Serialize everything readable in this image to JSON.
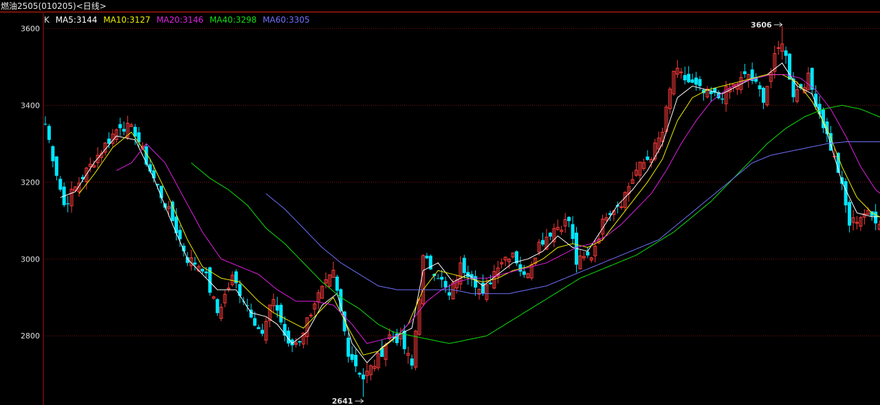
{
  "window": {
    "title": "燃油2505(010205)<日线>"
  },
  "legend": [
    {
      "label": "K",
      "color": "#e0e0e0"
    },
    {
      "label": "MA5:3144",
      "color": "#ffffff"
    },
    {
      "label": "MA10:3127",
      "color": "#f0f000"
    },
    {
      "label": "MA20:3146",
      "color": "#e020e0"
    },
    {
      "label": "MA40:3298",
      "color": "#10e010"
    },
    {
      "label": "MA60:3305",
      "color": "#7070ff"
    }
  ],
  "colors": {
    "up": "#ff3b3b",
    "down": "#00e6ff",
    "grid": "#8b1010",
    "axis": "#b01414",
    "text": "#e0e0e0"
  },
  "chart_data": {
    "type": "candlestick",
    "ylim": [
      2620,
      3640
    ],
    "yticks": [
      2800,
      3000,
      3200,
      3400,
      3600
    ],
    "annotations": [
      {
        "text": "3606",
        "value": 3606,
        "index": 197
      },
      {
        "text": "2641",
        "value": 2641,
        "index": 85
      }
    ],
    "anchors": [
      [
        0,
        3350
      ],
      [
        5,
        3140
      ],
      [
        9,
        3200
      ],
      [
        14,
        3270
      ],
      [
        20,
        3350
      ],
      [
        24,
        3330
      ],
      [
        28,
        3230
      ],
      [
        34,
        3100
      ],
      [
        38,
        3000
      ],
      [
        42,
        2980
      ],
      [
        46,
        2860
      ],
      [
        50,
        2950
      ],
      [
        54,
        2880
      ],
      [
        58,
        2800
      ],
      [
        61,
        2900
      ],
      [
        65,
        2770
      ],
      [
        68,
        2790
      ],
      [
        72,
        2890
      ],
      [
        77,
        2960
      ],
      [
        81,
        2760
      ],
      [
        85,
        2690
      ],
      [
        89,
        2740
      ],
      [
        92,
        2800
      ],
      [
        95,
        2790
      ],
      [
        98,
        2720
      ],
      [
        101,
        3000
      ],
      [
        105,
        2960
      ],
      [
        108,
        2900
      ],
      [
        111,
        2980
      ],
      [
        114,
        2960
      ],
      [
        117,
        2900
      ],
      [
        121,
        2990
      ],
      [
        125,
        3020
      ],
      [
        128,
        2950
      ],
      [
        132,
        3040
      ],
      [
        136,
        3080
      ],
      [
        140,
        3100
      ],
      [
        142,
        2990
      ],
      [
        146,
        3010
      ],
      [
        150,
        3120
      ],
      [
        154,
        3150
      ],
      [
        158,
        3230
      ],
      [
        162,
        3270
      ],
      [
        165,
        3330
      ],
      [
        168,
        3490
      ],
      [
        172,
        3460
      ],
      [
        176,
        3430
      ],
      [
        180,
        3420
      ],
      [
        184,
        3450
      ],
      [
        188,
        3480
      ],
      [
        192,
        3420
      ],
      [
        195,
        3520
      ],
      [
        197,
        3570
      ],
      [
        200,
        3430
      ],
      [
        204,
        3470
      ],
      [
        208,
        3350
      ],
      [
        212,
        3230
      ],
      [
        215,
        3090
      ],
      [
        219,
        3120
      ],
      [
        223,
        3100
      ],
      [
        227,
        3130
      ],
      [
        231,
        3160
      ]
    ],
    "ma": [
      {
        "name": "MA5",
        "color": "#ffffff",
        "anchors": [
          [
            4,
            3160
          ],
          [
            8,
            3175
          ],
          [
            13,
            3250
          ],
          [
            19,
            3320
          ],
          [
            24,
            3310
          ],
          [
            29,
            3210
          ],
          [
            34,
            3090
          ],
          [
            38,
            3000
          ],
          [
            42,
            2960
          ],
          [
            46,
            2920
          ],
          [
            51,
            2920
          ],
          [
            55,
            2860
          ],
          [
            59,
            2850
          ],
          [
            62,
            2830
          ],
          [
            66,
            2780
          ],
          [
            70,
            2810
          ],
          [
            74,
            2880
          ],
          [
            78,
            2910
          ],
          [
            82,
            2780
          ],
          [
            86,
            2730
          ],
          [
            90,
            2770
          ],
          [
            94,
            2800
          ],
          [
            98,
            2820
          ],
          [
            101,
            2970
          ],
          [
            105,
            2990
          ],
          [
            109,
            2940
          ],
          [
            113,
            2960
          ],
          [
            117,
            2930
          ],
          [
            121,
            2960
          ],
          [
            125,
            2990
          ],
          [
            129,
            3000
          ],
          [
            133,
            3020
          ],
          [
            137,
            3060
          ],
          [
            141,
            3030
          ],
          [
            145,
            3020
          ],
          [
            149,
            3080
          ],
          [
            153,
            3140
          ],
          [
            157,
            3180
          ],
          [
            161,
            3230
          ],
          [
            165,
            3300
          ],
          [
            169,
            3420
          ],
          [
            173,
            3450
          ],
          [
            177,
            3440
          ],
          [
            181,
            3430
          ],
          [
            185,
            3450
          ],
          [
            189,
            3470
          ],
          [
            193,
            3480
          ],
          [
            197,
            3510
          ],
          [
            201,
            3450
          ],
          [
            205,
            3430
          ],
          [
            209,
            3330
          ],
          [
            213,
            3200
          ],
          [
            217,
            3120
          ],
          [
            221,
            3110
          ],
          [
            225,
            3110
          ],
          [
            229,
            3130
          ],
          [
            232,
            3144
          ]
        ]
      },
      {
        "name": "MA10",
        "color": "#f0f000",
        "anchors": [
          [
            9,
            3170
          ],
          [
            13,
            3220
          ],
          [
            18,
            3290
          ],
          [
            23,
            3330
          ],
          [
            28,
            3260
          ],
          [
            33,
            3160
          ],
          [
            38,
            3050
          ],
          [
            42,
            2980
          ],
          [
            47,
            2950
          ],
          [
            52,
            2940
          ],
          [
            57,
            2890
          ],
          [
            61,
            2860
          ],
          [
            65,
            2840
          ],
          [
            69,
            2820
          ],
          [
            73,
            2860
          ],
          [
            77,
            2900
          ],
          [
            81,
            2820
          ],
          [
            85,
            2750
          ],
          [
            89,
            2760
          ],
          [
            93,
            2790
          ],
          [
            97,
            2830
          ],
          [
            101,
            2920
          ],
          [
            105,
            2970
          ],
          [
            109,
            2960
          ],
          [
            113,
            2950
          ],
          [
            117,
            2940
          ],
          [
            121,
            2950
          ],
          [
            125,
            2970
          ],
          [
            129,
            2980
          ],
          [
            133,
            3000
          ],
          [
            137,
            3030
          ],
          [
            141,
            3040
          ],
          [
            145,
            3030
          ],
          [
            149,
            3050
          ],
          [
            153,
            3100
          ],
          [
            157,
            3150
          ],
          [
            161,
            3200
          ],
          [
            165,
            3260
          ],
          [
            169,
            3360
          ],
          [
            173,
            3420
          ],
          [
            177,
            3440
          ],
          [
            181,
            3450
          ],
          [
            185,
            3460
          ],
          [
            189,
            3470
          ],
          [
            193,
            3480
          ],
          [
            197,
            3480
          ],
          [
            201,
            3460
          ],
          [
            205,
            3410
          ],
          [
            209,
            3340
          ],
          [
            213,
            3240
          ],
          [
            217,
            3160
          ],
          [
            221,
            3120
          ],
          [
            225,
            3100
          ],
          [
            229,
            3110
          ],
          [
            232,
            3127
          ]
        ]
      },
      {
        "name": "MA20",
        "color": "#e020e0",
        "anchors": [
          [
            19,
            3230
          ],
          [
            23,
            3250
          ],
          [
            27,
            3300
          ],
          [
            32,
            3250
          ],
          [
            37,
            3160
          ],
          [
            42,
            3070
          ],
          [
            47,
            3000
          ],
          [
            52,
            2980
          ],
          [
            57,
            2960
          ],
          [
            62,
            2920
          ],
          [
            67,
            2890
          ],
          [
            72,
            2890
          ],
          [
            77,
            2880
          ],
          [
            82,
            2830
          ],
          [
            86,
            2780
          ],
          [
            90,
            2790
          ],
          [
            94,
            2800
          ],
          [
            98,
            2840
          ],
          [
            102,
            2890
          ],
          [
            106,
            2920
          ],
          [
            110,
            2940
          ],
          [
            114,
            2950
          ],
          [
            118,
            2950
          ],
          [
            122,
            2960
          ],
          [
            126,
            2970
          ],
          [
            130,
            2980
          ],
          [
            134,
            2990
          ],
          [
            138,
            3010
          ],
          [
            142,
            3030
          ],
          [
            146,
            3040
          ],
          [
            150,
            3060
          ],
          [
            154,
            3090
          ],
          [
            158,
            3130
          ],
          [
            162,
            3170
          ],
          [
            166,
            3230
          ],
          [
            170,
            3300
          ],
          [
            174,
            3360
          ],
          [
            178,
            3410
          ],
          [
            182,
            3440
          ],
          [
            186,
            3460
          ],
          [
            190,
            3470
          ],
          [
            194,
            3480
          ],
          [
            198,
            3480
          ],
          [
            202,
            3470
          ],
          [
            206,
            3440
          ],
          [
            210,
            3390
          ],
          [
            214,
            3320
          ],
          [
            218,
            3240
          ],
          [
            222,
            3180
          ],
          [
            226,
            3150
          ],
          [
            230,
            3146
          ]
        ]
      },
      {
        "name": "MA40",
        "color": "#10e010",
        "anchors": [
          [
            39,
            3250
          ],
          [
            44,
            3210
          ],
          [
            49,
            3180
          ],
          [
            54,
            3140
          ],
          [
            59,
            3080
          ],
          [
            64,
            3040
          ],
          [
            69,
            2990
          ],
          [
            74,
            2940
          ],
          [
            79,
            2900
          ],
          [
            84,
            2870
          ],
          [
            89,
            2830
          ],
          [
            93,
            2810
          ],
          [
            98,
            2800
          ],
          [
            103,
            2790
          ],
          [
            108,
            2780
          ],
          [
            113,
            2790
          ],
          [
            118,
            2800
          ],
          [
            123,
            2830
          ],
          [
            128,
            2860
          ],
          [
            133,
            2890
          ],
          [
            138,
            2920
          ],
          [
            143,
            2950
          ],
          [
            148,
            2970
          ],
          [
            153,
            2990
          ],
          [
            158,
            3010
          ],
          [
            163,
            3040
          ],
          [
            168,
            3070
          ],
          [
            173,
            3110
          ],
          [
            178,
            3150
          ],
          [
            183,
            3200
          ],
          [
            188,
            3250
          ],
          [
            193,
            3300
          ],
          [
            198,
            3340
          ],
          [
            203,
            3370
          ],
          [
            208,
            3390
          ],
          [
            213,
            3400
          ],
          [
            218,
            3390
          ],
          [
            223,
            3370
          ],
          [
            228,
            3340
          ],
          [
            232,
            3298
          ]
        ]
      },
      {
        "name": "MA60",
        "color": "#7070ff",
        "anchors": [
          [
            59,
            3170
          ],
          [
            64,
            3130
          ],
          [
            69,
            3080
          ],
          [
            74,
            3030
          ],
          [
            79,
            2990
          ],
          [
            84,
            2960
          ],
          [
            89,
            2930
          ],
          [
            94,
            2920
          ],
          [
            99,
            2920
          ],
          [
            104,
            2920
          ],
          [
            109,
            2920
          ],
          [
            114,
            2910
          ],
          [
            119,
            2910
          ],
          [
            124,
            2910
          ],
          [
            129,
            2920
          ],
          [
            134,
            2930
          ],
          [
            139,
            2950
          ],
          [
            144,
            2970
          ],
          [
            149,
            2990
          ],
          [
            154,
            3010
          ],
          [
            159,
            3030
          ],
          [
            164,
            3050
          ],
          [
            169,
            3090
          ],
          [
            174,
            3130
          ],
          [
            179,
            3170
          ],
          [
            184,
            3210
          ],
          [
            189,
            3250
          ],
          [
            194,
            3270
          ],
          [
            199,
            3280
          ],
          [
            204,
            3290
          ],
          [
            209,
            3300
          ],
          [
            214,
            3305
          ],
          [
            219,
            3305
          ],
          [
            224,
            3305
          ],
          [
            229,
            3305
          ],
          [
            232,
            3305
          ]
        ]
      }
    ]
  }
}
